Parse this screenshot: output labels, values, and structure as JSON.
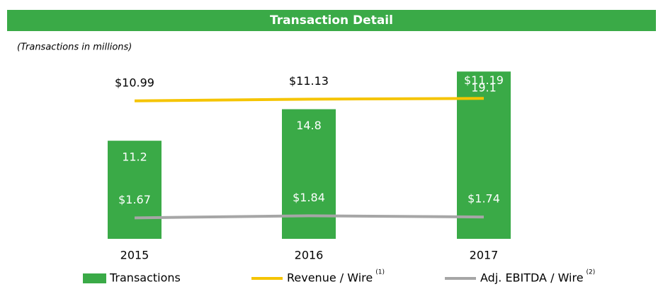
{
  "chart_data": {
    "type": "bar",
    "title": "Transaction Detail",
    "subtitle": "(Transactions in millions)",
    "categories": [
      "2015",
      "2016",
      "2017"
    ],
    "ylim": [
      0,
      19.2
    ],
    "y2lim": [
      0,
      13.4
    ],
    "series": [
      {
        "name": "Transactions",
        "type": "bar",
        "color": "#3aaa47",
        "values": [
          11.2,
          14.8,
          19.1
        ]
      },
      {
        "name": "Revenue / Wire",
        "note": "(1)",
        "type": "line",
        "axis": "y2",
        "color": "#f5c400",
        "values": [
          10.99,
          11.13,
          11.19
        ],
        "value_labels": [
          "$10.99",
          "$11.13",
          "$11.19"
        ]
      },
      {
        "name": "Adj. EBITDA / Wire",
        "note": "(2)",
        "type": "line",
        "axis": "y2",
        "color": "#a6a6a6",
        "values": [
          1.67,
          1.84,
          1.74
        ],
        "value_labels": [
          "$1.67",
          "$1.84",
          "$1.74"
        ]
      }
    ]
  }
}
